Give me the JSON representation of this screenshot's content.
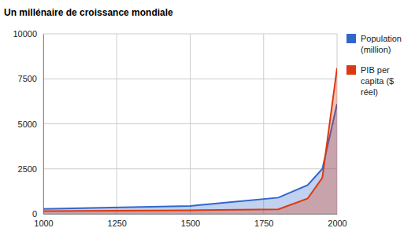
{
  "chart_data": {
    "type": "area",
    "title": "Un millénaire de croissance mondiale",
    "x": [
      1000,
      1500,
      1800,
      1900,
      1950,
      2000
    ],
    "series": [
      {
        "name": "Population (million)",
        "color": "#3366cc",
        "values": [
          268,
          438,
          900,
          1600,
          2500,
          6100
        ]
      },
      {
        "name": "PIB per capita ($ réel)",
        "color": "#dc3912",
        "values": [
          150,
          200,
          250,
          850,
          2000,
          8100
        ]
      }
    ],
    "xlim": [
      1000,
      2000
    ],
    "xticks": [
      1000,
      1250,
      1500,
      1750,
      2000
    ],
    "ylim": [
      0,
      10000
    ],
    "yticks": [
      0,
      2500,
      5000,
      7500,
      10000
    ],
    "grid": true,
    "legend": "right"
  }
}
